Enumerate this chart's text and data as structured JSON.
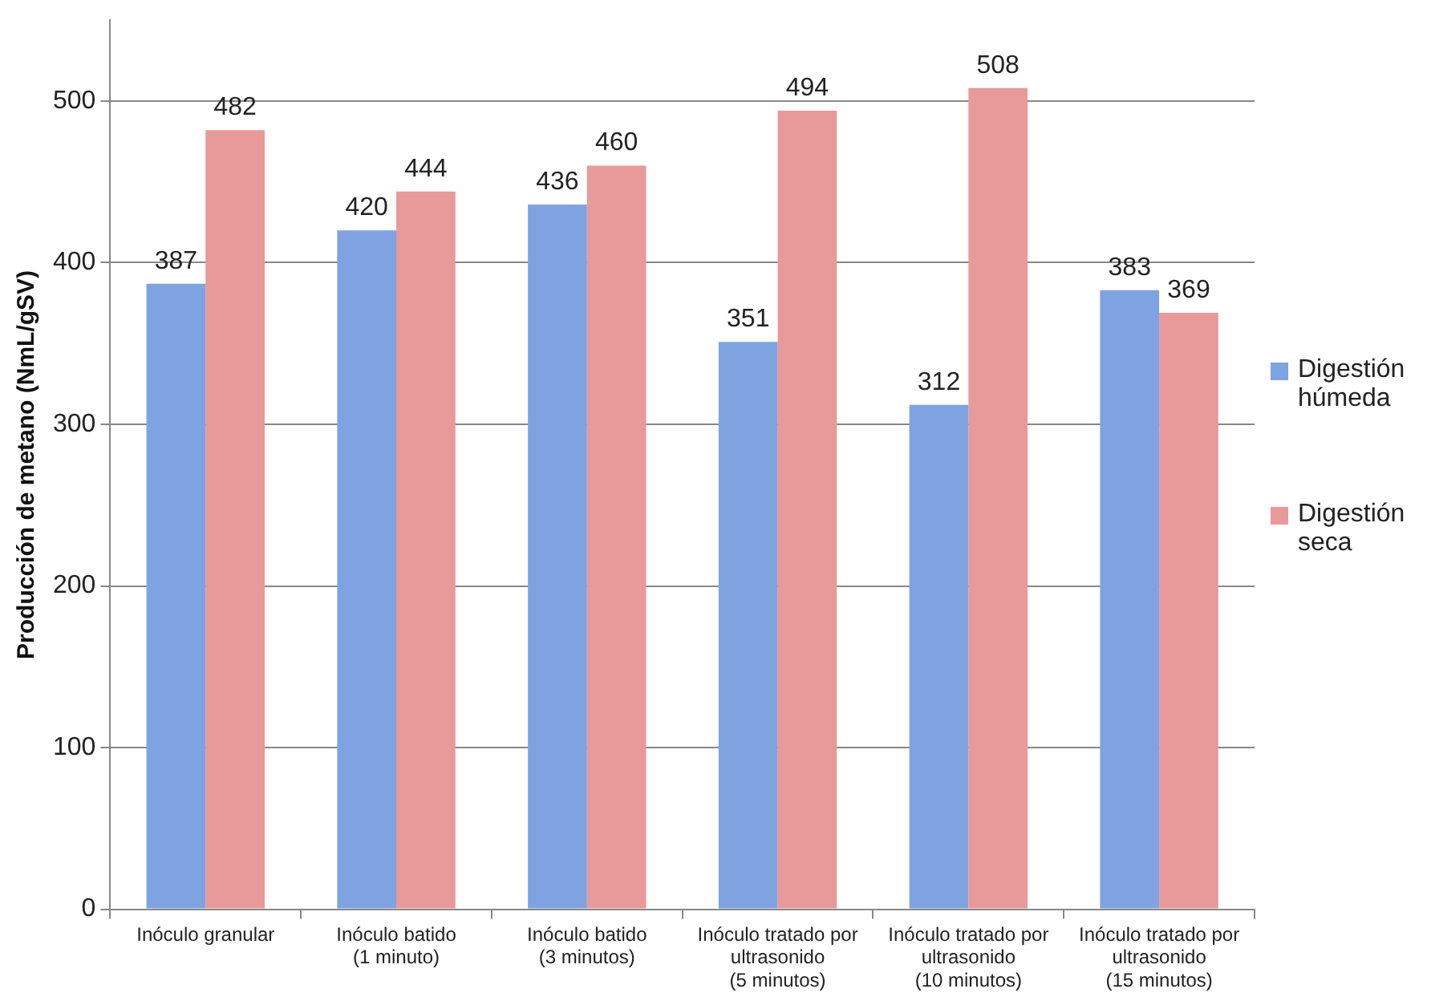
{
  "chart_data": {
    "type": "bar",
    "ylabel": "Producción de metano (NmL/gSV)",
    "categories": [
      "Inóculo granular",
      "Inóculo batido (1 minuto)",
      "Inóculo batido (3 minutos)",
      "Inóculo tratado por ultrasonido (5 minutos)",
      "Inóculo tratado por ultrasonido (10 minutos)",
      "Inóculo tratado por ultrasonido (15 minutos)"
    ],
    "series": [
      {
        "name": "Digestión húmeda",
        "color": "#7fa3e0",
        "values": [
          387,
          420,
          436,
          351,
          312,
          383
        ]
      },
      {
        "name": "Digestión seca",
        "color": "#e8999a",
        "values": [
          482,
          444,
          460,
          494,
          508,
          369
        ]
      }
    ],
    "ylim": [
      0,
      550
    ],
    "yticks": [
      0,
      100,
      200,
      300,
      400,
      500
    ],
    "grid": "y",
    "legend": "right",
    "data_labels": true
  }
}
